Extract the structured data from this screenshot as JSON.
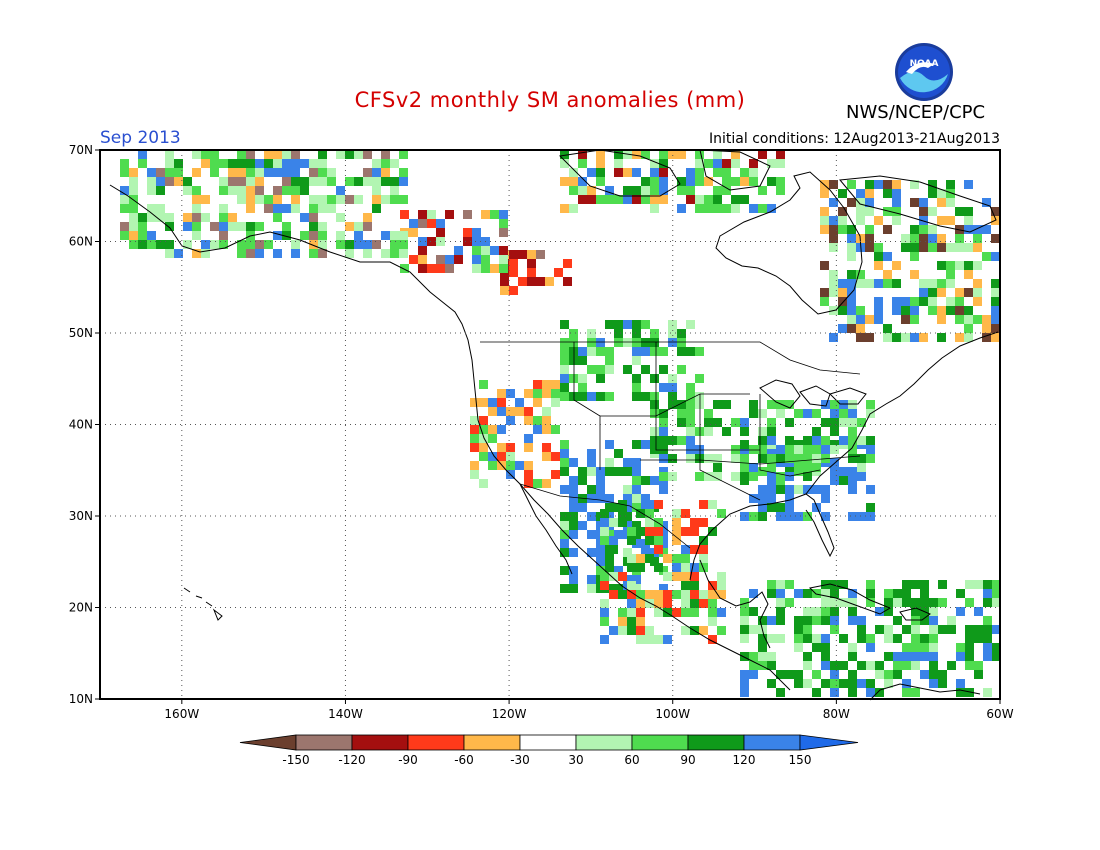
{
  "title": "CFSv2 monthly SM anomalies (mm)",
  "agency": "NWS/NCEP/CPC",
  "logo_text": "NOAA",
  "valid_month": "Sep 2013",
  "initial_conditions": "Initial conditions: 12Aug2013-21Aug2013",
  "map": {
    "lon_range": [
      -170,
      -60
    ],
    "lat_range": [
      10,
      70
    ],
    "lat_labels": [
      "10N",
      "20N",
      "30N",
      "40N",
      "50N",
      "60N",
      "70N"
    ],
    "lon_labels": [
      "160W",
      "140W",
      "120W",
      "100W",
      "80W",
      "60W"
    ],
    "gridlines": "dotted",
    "ocean_color": "#ffffff"
  },
  "legend": {
    "levels": [
      "-150",
      "-120",
      "-90",
      "-60",
      "-30",
      "30",
      "60",
      "90",
      "120",
      "150"
    ],
    "colors": [
      "#6b3f2e",
      "#9c766e",
      "#a40f0f",
      "#ff3a1a",
      "#ffb84a",
      "#ffffff",
      "#b2f5b2",
      "#4fdc4f",
      "#0f9a1a",
      "#3a83e8",
      "#1f6ae8"
    ]
  }
}
